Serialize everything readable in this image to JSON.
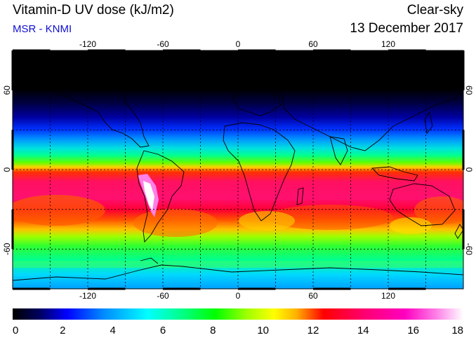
{
  "header": {
    "title": "Vitamin-D UV dose (kJ/m2)",
    "source": "MSR - KNMI",
    "condition": "Clear-sky",
    "date": "13 December 2017"
  },
  "map": {
    "projection": "equirectangular",
    "lon_range": [
      -180,
      180
    ],
    "lat_range": [
      -90,
      90
    ],
    "lon_ticks": [
      "-120",
      "-60",
      "0",
      "60",
      "120"
    ],
    "lat_ticks": [
      "60",
      "0",
      "-60"
    ],
    "grid": "dashed 30-degree graticule",
    "content": "global map of clear-sky vitamin-D UV dose with coastlines"
  },
  "colorbar": {
    "min": 0,
    "max": 18,
    "tick_labels": [
      "0",
      "2",
      "4",
      "6",
      "8",
      "10",
      "12",
      "14",
      "16",
      "18"
    ],
    "colors": [
      "#000000",
      "#000060",
      "#0000ff",
      "#0088ff",
      "#00ffff",
      "#00ff80",
      "#00ff00",
      "#80ff00",
      "#ffff00",
      "#ffc000",
      "#ff8000",
      "#ff0000",
      "#ff0060",
      "#ff00b0",
      "#ff60e0",
      "#ffc0f0",
      "#ffffff"
    ]
  }
}
